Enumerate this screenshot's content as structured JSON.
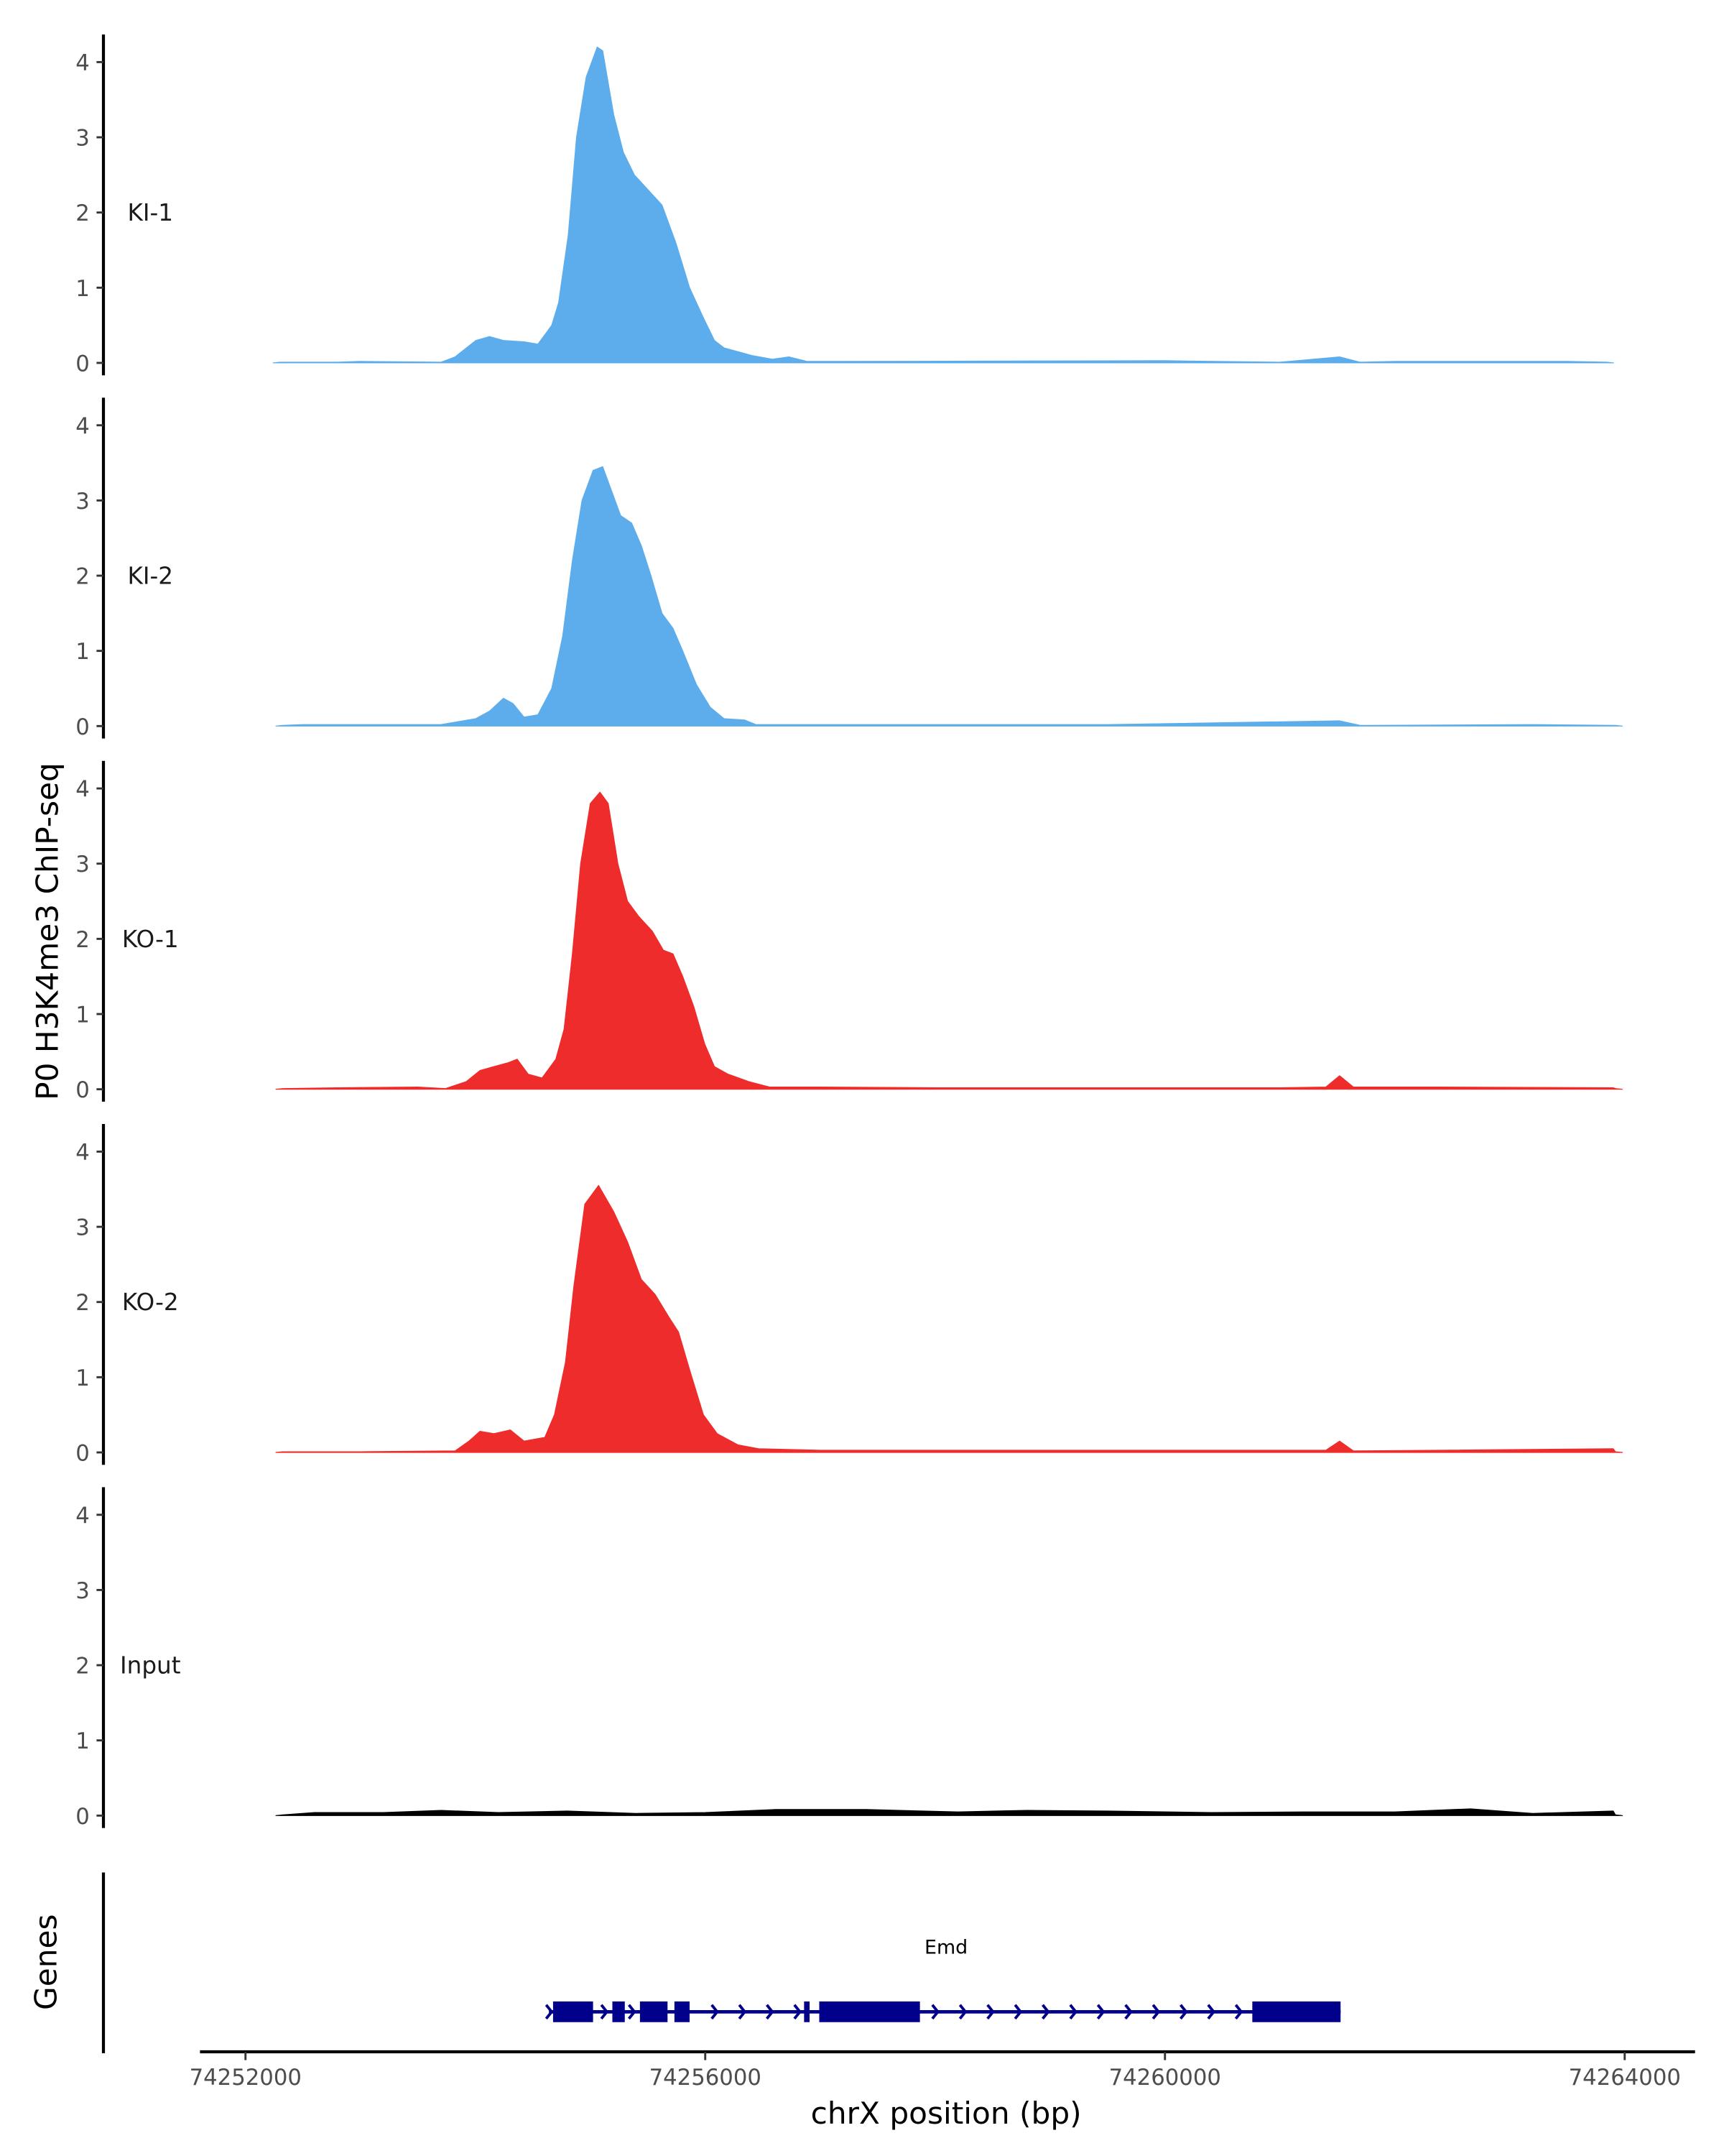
{
  "chart_data": {
    "type": "area",
    "ylabel": "P0 H3K4me3 ChIP-seq",
    "xlabel": "chrX position (bp)",
    "xlim": [
      74252000,
      74264000
    ],
    "xticks": [
      74252000,
      74256000,
      74260000,
      74264000
    ],
    "xtick_labels": [
      "74252000",
      "74256000",
      "74260000",
      "74264000"
    ],
    "ylim": [
      0,
      4.3
    ],
    "yticks": [
      "0",
      "1",
      "2",
      "3",
      "4"
    ],
    "grid": false,
    "tracks": [
      {
        "name": "KI-1",
        "color": "#5DADEC",
        "range": [
          74252240,
          74263904
        ],
        "points": [
          [
            74252800,
            0.01
          ],
          [
            74253000,
            0.02
          ],
          [
            74253700,
            0.01
          ],
          [
            74253824,
            0.08
          ],
          [
            74254004,
            0.3
          ],
          [
            74254124,
            0.35
          ],
          [
            74254244,
            0.3
          ],
          [
            74254424,
            0.28
          ],
          [
            74254544,
            0.25
          ],
          [
            74254664,
            0.5
          ],
          [
            74254724,
            0.8
          ],
          [
            74254808,
            1.7
          ],
          [
            74254880,
            3.0
          ],
          [
            74254964,
            3.8
          ],
          [
            74255060,
            4.2
          ],
          [
            74255108,
            4.15
          ],
          [
            74255204,
            3.3
          ],
          [
            74255288,
            2.8
          ],
          [
            74255384,
            2.5
          ],
          [
            74255504,
            2.3
          ],
          [
            74255624,
            2.1
          ],
          [
            74255744,
            1.6
          ],
          [
            74255864,
            1.0
          ],
          [
            74255984,
            0.6
          ],
          [
            74256080,
            0.3
          ],
          [
            74256164,
            0.2
          ],
          [
            74256404,
            0.1
          ],
          [
            74256584,
            0.05
          ],
          [
            74256728,
            0.08
          ],
          [
            74256884,
            0.02
          ],
          [
            74257200,
            0.02
          ],
          [
            74260000,
            0.03
          ],
          [
            74261000,
            0.01
          ],
          [
            74261520,
            0.08
          ],
          [
            74261700,
            0.01
          ],
          [
            74262000,
            0.02
          ],
          [
            74263500,
            0.02
          ]
        ]
      },
      {
        "name": "KI-2",
        "color": "#5DADEC",
        "range": [
          74252264,
          74263980
        ],
        "points": [
          [
            74252500,
            0.02
          ],
          [
            74253700,
            0.02
          ],
          [
            74254004,
            0.1
          ],
          [
            74254124,
            0.2
          ],
          [
            74254244,
            0.37
          ],
          [
            74254328,
            0.3
          ],
          [
            74254424,
            0.12
          ],
          [
            74254544,
            0.15
          ],
          [
            74254664,
            0.5
          ],
          [
            74254760,
            1.2
          ],
          [
            74254844,
            2.2
          ],
          [
            74254928,
            3.0
          ],
          [
            74255024,
            3.4
          ],
          [
            74255108,
            3.45
          ],
          [
            74255168,
            3.2
          ],
          [
            74255264,
            2.8
          ],
          [
            74255360,
            2.7
          ],
          [
            74255444,
            2.4
          ],
          [
            74255528,
            2.0
          ],
          [
            74255624,
            1.5
          ],
          [
            74255720,
            1.3
          ],
          [
            74255804,
            1.0
          ],
          [
            74255924,
            0.55
          ],
          [
            74256044,
            0.25
          ],
          [
            74256164,
            0.1
          ],
          [
            74256344,
            0.08
          ],
          [
            74256440,
            0.02
          ],
          [
            74257500,
            0.02
          ],
          [
            74259500,
            0.02
          ],
          [
            74261520,
            0.07
          ],
          [
            74261700,
            0.01
          ],
          [
            74263200,
            0.02
          ]
        ]
      },
      {
        "name": "KO-1",
        "color": "#EE2C2C",
        "range": [
          74252264,
          74263980
        ],
        "points": [
          [
            74252800,
            0.02
          ],
          [
            74253500,
            0.03
          ],
          [
            74253740,
            0.01
          ],
          [
            74253920,
            0.1
          ],
          [
            74254040,
            0.25
          ],
          [
            74254160,
            0.3
          ],
          [
            74254280,
            0.35
          ],
          [
            74254364,
            0.4
          ],
          [
            74254460,
            0.2
          ],
          [
            74254580,
            0.15
          ],
          [
            74254700,
            0.4
          ],
          [
            74254772,
            0.8
          ],
          [
            74254844,
            1.8
          ],
          [
            74254916,
            3.0
          ],
          [
            74255000,
            3.8
          ],
          [
            74255084,
            3.95
          ],
          [
            74255156,
            3.8
          ],
          [
            74255240,
            3.0
          ],
          [
            74255324,
            2.5
          ],
          [
            74255420,
            2.3
          ],
          [
            74255540,
            2.1
          ],
          [
            74255636,
            1.85
          ],
          [
            74255720,
            1.8
          ],
          [
            74255804,
            1.5
          ],
          [
            74255900,
            1.1
          ],
          [
            74255996,
            0.6
          ],
          [
            74256080,
            0.3
          ],
          [
            74256200,
            0.2
          ],
          [
            74256380,
            0.1
          ],
          [
            74256560,
            0.03
          ],
          [
            74257000,
            0.03
          ],
          [
            74258000,
            0.02
          ],
          [
            74261000,
            0.02
          ],
          [
            74261400,
            0.03
          ],
          [
            74261520,
            0.18
          ],
          [
            74261640,
            0.03
          ],
          [
            74262400,
            0.03
          ],
          [
            74263900,
            0.02
          ]
        ]
      },
      {
        "name": "KO-2",
        "color": "#EE2C2C",
        "range": [
          74252264,
          74263980
        ],
        "points": [
          [
            74253000,
            0.01
          ],
          [
            74253824,
            0.02
          ],
          [
            74253944,
            0.15
          ],
          [
            74254040,
            0.28
          ],
          [
            74254160,
            0.25
          ],
          [
            74254304,
            0.3
          ],
          [
            74254424,
            0.15
          ],
          [
            74254604,
            0.2
          ],
          [
            74254688,
            0.5
          ],
          [
            74254784,
            1.2
          ],
          [
            74254856,
            2.2
          ],
          [
            74254952,
            3.3
          ],
          [
            74255072,
            3.55
          ],
          [
            74255204,
            3.2
          ],
          [
            74255324,
            2.8
          ],
          [
            74255444,
            2.3
          ],
          [
            74255564,
            2.1
          ],
          [
            74255684,
            1.8
          ],
          [
            74255768,
            1.6
          ],
          [
            74255864,
            1.1
          ],
          [
            74255984,
            0.5
          ],
          [
            74256104,
            0.25
          ],
          [
            74256284,
            0.1
          ],
          [
            74256464,
            0.05
          ],
          [
            74257000,
            0.03
          ],
          [
            74258000,
            0.03
          ],
          [
            74261400,
            0.03
          ],
          [
            74261520,
            0.15
          ],
          [
            74261640,
            0.02
          ],
          [
            74262400,
            0.03
          ],
          [
            74263900,
            0.05
          ]
        ]
      },
      {
        "name": "Input",
        "color": "#000000",
        "range": [
          74252264,
          74263980
        ],
        "points": [
          [
            74252600,
            0.04
          ],
          [
            74253200,
            0.04
          ],
          [
            74253700,
            0.07
          ],
          [
            74254200,
            0.04
          ],
          [
            74254800,
            0.06
          ],
          [
            74255400,
            0.03
          ],
          [
            74256000,
            0.04
          ],
          [
            74256600,
            0.08
          ],
          [
            74257400,
            0.08
          ],
          [
            74258200,
            0.05
          ],
          [
            74258800,
            0.07
          ],
          [
            74259500,
            0.06
          ],
          [
            74260400,
            0.04
          ],
          [
            74261200,
            0.05
          ],
          [
            74262000,
            0.05
          ],
          [
            74262660,
            0.09
          ],
          [
            74263200,
            0.03
          ],
          [
            74263900,
            0.06
          ]
        ]
      }
    ],
    "genes": {
      "label": "Genes",
      "items": [
        {
          "name": "Emd",
          "strand": "+",
          "color": "#00008B",
          "start": 74254640,
          "end": 74261528,
          "exons": [
            [
              74254676,
              74255024
            ],
            [
              74255192,
              74255300
            ],
            [
              74255432,
              74255672
            ],
            [
              74255732,
              74255864
            ],
            [
              74256860,
              74256908
            ],
            [
              74256992,
              74257868
            ],
            [
              74260760,
              74261528
            ]
          ]
        }
      ]
    }
  }
}
